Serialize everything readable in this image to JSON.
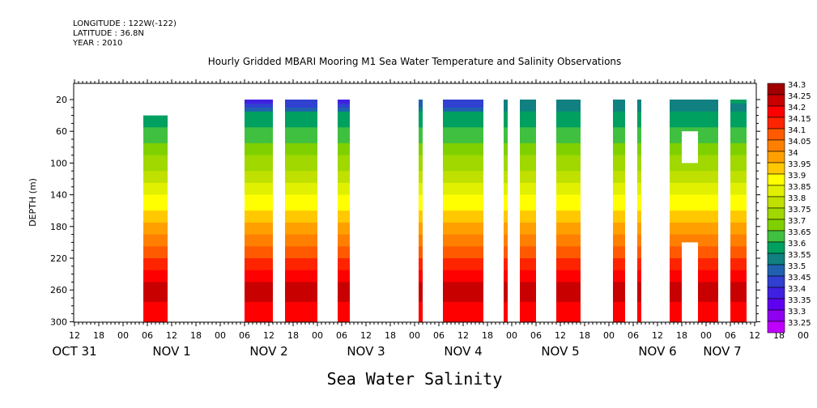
{
  "header": {
    "longitude": "LONGITUDE : 122W(-122)",
    "latitude": "LATITUDE : 36.8N",
    "year": "YEAR : 2010"
  },
  "chart_data": {
    "type": "heatmap",
    "title": "Hourly Gridded MBARI Mooring M1 Sea Water Temperature and Salinity Observations",
    "xlabel": "Sea Water Salinity",
    "ylabel": "DEPTH (m)",
    "x_unit": "hours since 2010-10-31 12:00",
    "xlim": [
      0,
      168
    ],
    "ylim": [
      300,
      0
    ],
    "y_ticks": [
      20,
      60,
      100,
      140,
      180,
      220,
      260,
      300
    ],
    "x_hour_ticks": [
      "12",
      "18",
      "00",
      "06",
      "12",
      "18",
      "00",
      "06",
      "12",
      "18",
      "00",
      "06",
      "12",
      "18",
      "00",
      "06",
      "12",
      "18",
      "00",
      "06",
      "12",
      "18",
      "00",
      "06",
      "12",
      "18",
      "00",
      "06",
      "12",
      "18",
      "00",
      "06",
      "12"
    ],
    "date_labels": [
      {
        "label": "OCT 31",
        "hour": 0
      },
      {
        "label": "NOV  1",
        "hour": 24
      },
      {
        "label": "NOV  2",
        "hour": 48
      },
      {
        "label": "NOV  3",
        "hour": 72
      },
      {
        "label": "NOV  4",
        "hour": 96
      },
      {
        "label": "NOV  5",
        "hour": 120
      },
      {
        "label": "NOV  6",
        "hour": 144
      },
      {
        "label": "NOV  7",
        "hour": 160
      }
    ],
    "colorbar": {
      "levels": [
        "34.3",
        "34.25",
        "34.2",
        "34.15",
        "34.1",
        "34.05",
        "34",
        "33.95",
        "33.9",
        "33.85",
        "33.8",
        "33.75",
        "33.7",
        "33.65",
        "33.6",
        "33.55",
        "33.5",
        "33.45",
        "33.4",
        "33.35",
        "33.3",
        "33.25"
      ],
      "colors": [
        "#a00000",
        "#c80000",
        "#ff0000",
        "#ff2400",
        "#ff5a00",
        "#ff8000",
        "#ffa000",
        "#ffc800",
        "#ffff00",
        "#e0f000",
        "#c0e000",
        "#a0d800",
        "#80d000",
        "#40c040",
        "#00a060",
        "#108080",
        "#2060b0",
        "#3040d0",
        "#4020e0",
        "#6000f0",
        "#9000f0",
        "#c000ff"
      ]
    },
    "profile_depths": [
      20,
      40,
      60,
      80,
      100,
      120,
      140,
      160,
      180,
      200,
      220,
      240,
      260,
      280,
      300
    ],
    "profile_salinity": [
      33.55,
      33.62,
      33.66,
      33.72,
      33.77,
      33.83,
      33.9,
      33.95,
      34.02,
      34.08,
      34.15,
      34.22,
      34.27,
      34.24,
      34.2
    ],
    "data_segments": [
      {
        "start": 17,
        "end": 23,
        "top_depth": 40,
        "surface_value": 33.55
      },
      {
        "start": 42,
        "end": 49,
        "top_depth": 20,
        "surface_value": 33.42
      },
      {
        "start": 52,
        "end": 60,
        "top_depth": 20,
        "surface_value": 33.45
      },
      {
        "start": 65,
        "end": 68,
        "top_depth": 20,
        "surface_value": 33.42
      },
      {
        "start": 85,
        "end": 86,
        "top_depth": 20,
        "surface_value": 33.5
      },
      {
        "start": 91,
        "end": 101,
        "top_depth": 20,
        "surface_value": 33.45
      },
      {
        "start": 106,
        "end": 107,
        "top_depth": 20,
        "surface_value": 33.55
      },
      {
        "start": 110,
        "end": 114,
        "top_depth": 20,
        "surface_value": 33.55
      },
      {
        "start": 119,
        "end": 125,
        "top_depth": 20,
        "surface_value": 33.55
      },
      {
        "start": 133,
        "end": 136,
        "top_depth": 20,
        "surface_value": 33.55
      },
      {
        "start": 139,
        "end": 140,
        "top_depth": 20,
        "surface_value": 33.55
      },
      {
        "start": 147,
        "end": 159,
        "top_depth": 20,
        "surface_value": 33.55
      },
      {
        "start": 162,
        "end": 166,
        "top_depth": 20,
        "surface_value": 33.6
      }
    ],
    "missing_blocks": [
      {
        "start": 150,
        "end": 154,
        "top_depth": 60,
        "bottom_depth": 100
      },
      {
        "start": 150,
        "end": 154,
        "top_depth": 200,
        "bottom_depth": 300
      }
    ]
  }
}
